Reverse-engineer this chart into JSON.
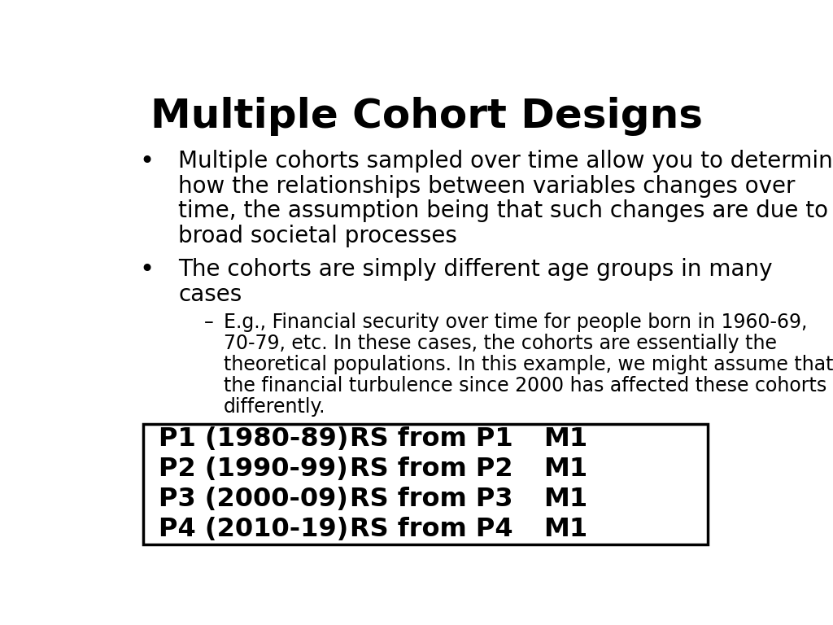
{
  "title": "Multiple Cohort Designs",
  "title_fontsize": 36,
  "title_fontweight": "bold",
  "background_color": "#ffffff",
  "text_color": "#000000",
  "bullet1_lines": [
    "Multiple cohorts sampled over time allow you to determine",
    "how the relationships between variables changes over",
    "time, the assumption being that such changes are due to",
    "broad societal processes"
  ],
  "bullet2_lines": [
    "The cohorts are simply different age groups in many",
    "cases"
  ],
  "sub_bullet_lines": [
    "E.g., Financial security over time for people born in 1960-69,",
    "70-79, etc. In these cases, the cohorts are essentially the",
    "theoretical populations. In this example, we might assume that",
    "the financial turbulence since 2000 has affected these cohorts",
    "differently."
  ],
  "table_rows": [
    [
      "P1 (1980-89)",
      "RS from P1",
      "M1"
    ],
    [
      "P2 (1990-99)",
      "RS from P2",
      "M1"
    ],
    [
      "P3 (2000-09)",
      "RS from P3",
      "M1"
    ],
    [
      "P4 (2010-19)",
      "RS from P4",
      "M1"
    ]
  ],
  "bullet_fontsize": 20,
  "sub_bullet_fontsize": 17,
  "table_fontsize": 23
}
